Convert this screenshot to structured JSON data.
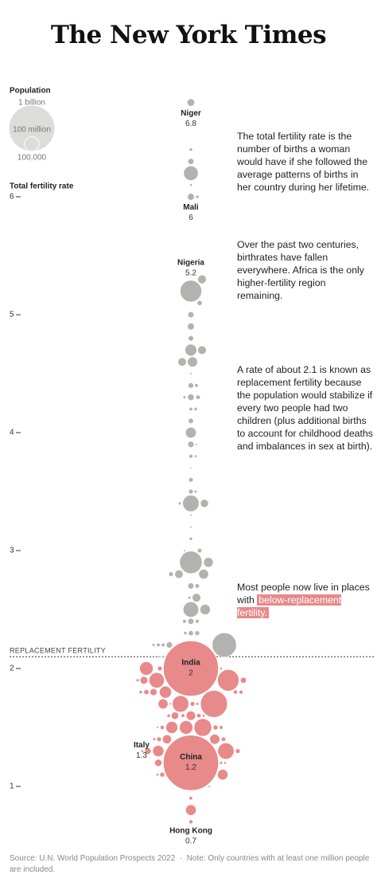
{
  "header": {
    "masthead": "The New York Times"
  },
  "chart_data": {
    "type": "beeswarm",
    "y_label": "Total fertility rate",
    "ylim": [
      0.5,
      7.0
    ],
    "yticks": [
      1,
      2,
      3,
      4,
      5,
      6
    ],
    "replacement": {
      "label": "REPLACEMENT FERTILITY",
      "value": 2.1
    },
    "colors": {
      "above": "#b2b2b0",
      "below": "#e8898a",
      "legend": "#dcdcda"
    },
    "size_legend": {
      "title": "Population",
      "sizes": [
        {
          "value": 1000,
          "label": "1 billion"
        },
        {
          "value": 100,
          "label": "100 million"
        },
        {
          "value": 0.1,
          "label": "100,000"
        }
      ]
    },
    "points": [
      {
        "name": "Niger",
        "value": 6.8,
        "population": 26
      },
      {
        "value": 6.4,
        "population": 5
      },
      {
        "value": 6.3,
        "population": 17
      },
      {
        "value": 6.2,
        "population": 99
      },
      {
        "value": 6.1,
        "population": 3
      },
      {
        "value": 6.0,
        "population": 5
      },
      {
        "name": "Mali",
        "value": 6.0,
        "population": 22
      },
      {
        "value": 5.3,
        "population": 35
      },
      {
        "name": "Nigeria",
        "value": 5.2,
        "population": 218
      },
      {
        "value": 5.1,
        "population": 12
      },
      {
        "value": 5.0,
        "population": 17
      },
      {
        "value": 4.9,
        "population": 22
      },
      {
        "value": 4.8,
        "population": 13
      },
      {
        "value": 4.7,
        "population": 65
      },
      {
        "value": 4.7,
        "population": 34
      },
      {
        "value": 4.6,
        "population": 47
      },
      {
        "value": 4.6,
        "population": 33
      },
      {
        "value": 4.5,
        "population": 2
      },
      {
        "value": 4.4,
        "population": 14
      },
      {
        "value": 4.4,
        "population": 6
      },
      {
        "value": 4.3,
        "population": 20
      },
      {
        "value": 4.3,
        "population": 9
      },
      {
        "value": 4.3,
        "population": 4
      },
      {
        "value": 4.2,
        "population": 5
      },
      {
        "value": 4.2,
        "population": 6
      },
      {
        "value": 4.1,
        "population": 13
      },
      {
        "value": 4.0,
        "population": 54
      },
      {
        "value": 3.9,
        "population": 19
      },
      {
        "value": 3.9,
        "population": 2
      },
      {
        "value": 3.8,
        "population": 3
      },
      {
        "value": 3.8,
        "population": 7
      },
      {
        "value": 3.7,
        "population": 1.5
      },
      {
        "value": 3.6,
        "population": 10
      },
      {
        "value": 3.5,
        "population": 10
      },
      {
        "value": 3.5,
        "population": 4
      },
      {
        "value": 3.4,
        "population": 126
      },
      {
        "value": 3.4,
        "population": 30
      },
      {
        "value": 3.4,
        "population": 4
      },
      {
        "value": 3.3,
        "population": 2
      },
      {
        "value": 3.2,
        "population": 2
      },
      {
        "value": 3.1,
        "population": 5
      },
      {
        "value": 3.0,
        "population": 9
      },
      {
        "value": 3.0,
        "population": 2
      },
      {
        "value": 2.9,
        "population": 44
      },
      {
        "value": 2.9,
        "population": 236
      },
      {
        "value": 2.8,
        "population": 33
      },
      {
        "value": 2.8,
        "population": 45
      },
      {
        "value": 2.8,
        "population": 10
      },
      {
        "value": 2.7,
        "population": 9
      },
      {
        "value": 2.7,
        "population": 17
      },
      {
        "value": 2.6,
        "population": 4
      },
      {
        "value": 2.6,
        "population": 34
      },
      {
        "value": 2.5,
        "population": 50
      },
      {
        "value": 2.5,
        "population": 111
      },
      {
        "value": 2.4,
        "population": 7
      },
      {
        "value": 2.4,
        "population": 17
      },
      {
        "value": 2.4,
        "population": 7
      },
      {
        "value": 2.3,
        "population": 12
      },
      {
        "value": 2.3,
        "population": 5
      },
      {
        "value": 2.3,
        "population": 10
      },
      {
        "value": 2.2,
        "population": 6
      },
      {
        "value": 2.2,
        "population": 6
      },
      {
        "value": 2.2,
        "population": 4
      },
      {
        "value": 2.2,
        "population": 275
      },
      {
        "value": 2.2,
        "population": 18
      },
      {
        "value": 2.1,
        "population": 2
      },
      {
        "value": 2.1,
        "population": 3
      },
      {
        "name": "India",
        "value": 2.0,
        "population": 1417
      },
      {
        "value": 2.0,
        "population": 85
      },
      {
        "value": 2.0,
        "population": 3
      },
      {
        "value": 2.0,
        "population": 10
      },
      {
        "value": 1.9,
        "population": 17
      },
      {
        "value": 1.9,
        "population": 4
      },
      {
        "value": 1.9,
        "population": 28
      },
      {
        "value": 1.9,
        "population": 110
      },
      {
        "value": 1.9,
        "population": 215
      },
      {
        "value": 1.8,
        "population": 8
      },
      {
        "value": 1.8,
        "population": 68
      },
      {
        "value": 1.8,
        "population": 5
      },
      {
        "value": 1.8,
        "population": 12
      },
      {
        "value": 1.8,
        "population": 7
      },
      {
        "value": 1.8,
        "population": 23
      },
      {
        "value": 1.7,
        "population": 338
      },
      {
        "value": 1.7,
        "population": 127
      },
      {
        "value": 1.7,
        "population": 2
      },
      {
        "value": 1.7,
        "population": 4
      },
      {
        "value": 1.7,
        "population": 10
      },
      {
        "value": 1.7,
        "population": 46
      },
      {
        "value": 1.6,
        "population": 26
      },
      {
        "value": 1.6,
        "population": 40
      },
      {
        "value": 1.6,
        "population": 5
      },
      {
        "value": 1.6,
        "population": 6
      },
      {
        "value": 1.6,
        "population": 9
      },
      {
        "value": 1.6,
        "population": 3
      },
      {
        "value": 1.5,
        "population": 84
      },
      {
        "value": 1.5,
        "population": 67
      },
      {
        "value": 1.5,
        "population": 144
      },
      {
        "value": 1.5,
        "population": 11
      },
      {
        "value": 1.5,
        "population": 2
      },
      {
        "value": 1.5,
        "population": 6
      },
      {
        "value": 1.5,
        "population": 8
      },
      {
        "value": 1.4,
        "population": 38
      },
      {
        "value": 1.4,
        "population": 47
      },
      {
        "value": 1.4,
        "population": 9
      },
      {
        "value": 1.4,
        "population": 10
      },
      {
        "value": 1.4,
        "population": 4
      },
      {
        "name": "Italy",
        "value": 1.3,
        "population": 59
      },
      {
        "value": 1.3,
        "population": 10
      },
      {
        "value": 1.3,
        "population": 19
      },
      {
        "value": 1.3,
        "population": 3
      },
      {
        "value": 1.3,
        "population": 124
      },
      {
        "name": "China",
        "value": 1.2,
        "population": 1426
      },
      {
        "value": 1.2,
        "population": 4
      },
      {
        "value": 1.2,
        "population": 24
      },
      {
        "value": 1.2,
        "population": 3
      },
      {
        "value": 1.1,
        "population": 52
      },
      {
        "value": 1.1,
        "population": 11
      },
      {
        "value": 1.1,
        "population": 3
      },
      {
        "value": 1.0,
        "population": 2
      },
      {
        "value": 0.9,
        "population": 6
      },
      {
        "value": 0.8,
        "population": 52
      },
      {
        "name": "Hong Kong",
        "value": 0.7,
        "population": 7.5
      }
    ]
  },
  "annotations": [
    "The total fertility rate is the number of births a woman would have if she followed the average patterns of births in her country during her lifetime.",
    "Over the past two centuries, birthrates have fallen everywhere. Africa is the only higher-fertility region remaining.",
    "A rate of about 2.1 is known as replacement fertility because the population would stabilize if every two people had two children (plus additional births to account for childhood deaths and imbalances in sex at birth).",
    {
      "text": "Most people now live in places with",
      "highlight": "below-replacement fertility."
    }
  ],
  "footer": {
    "source": "Source: U.N. World Population Prospects 2022",
    "note": "Note: Only countries with at least one million people are included."
  }
}
